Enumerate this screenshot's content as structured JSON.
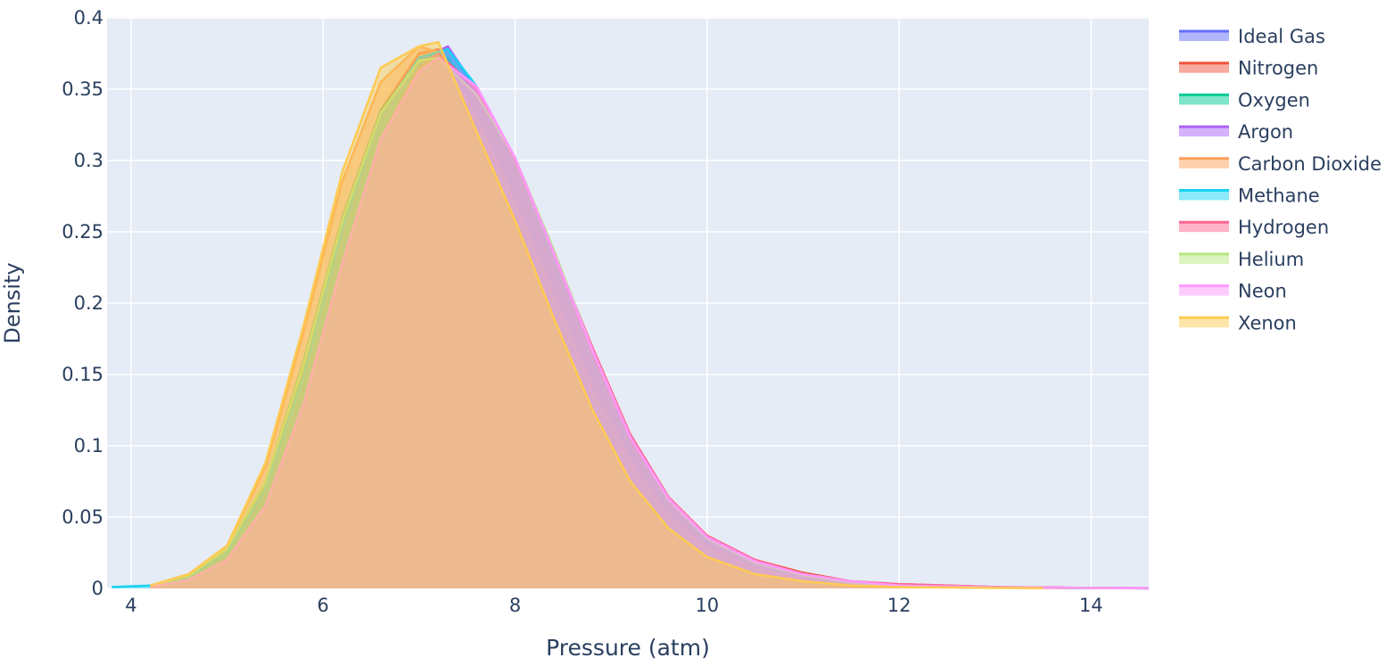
{
  "chart_data": {
    "type": "area",
    "title": "",
    "xlabel": "Pressure (atm)",
    "ylabel": "Density",
    "xlim": [
      3.75,
      14.6
    ],
    "ylim": [
      0,
      0.4
    ],
    "x_ticks": [
      4,
      6,
      8,
      10,
      12,
      14
    ],
    "y_ticks": [
      0,
      0.05,
      0.1,
      0.15,
      0.2,
      0.25,
      0.3,
      0.35,
      0.4
    ],
    "grid": true,
    "legend_position": "top-right",
    "series": [
      {
        "name": "Ideal Gas",
        "color": "#636efa",
        "points": [
          [
            4.2,
            0.002
          ],
          [
            4.6,
            0.008
          ],
          [
            5.0,
            0.025
          ],
          [
            5.4,
            0.07
          ],
          [
            5.8,
            0.15
          ],
          [
            6.2,
            0.25
          ],
          [
            6.6,
            0.33
          ],
          [
            7.0,
            0.372
          ],
          [
            7.3,
            0.378
          ],
          [
            7.6,
            0.35
          ],
          [
            8.0,
            0.3
          ],
          [
            8.4,
            0.23
          ],
          [
            8.8,
            0.16
          ],
          [
            9.2,
            0.1
          ],
          [
            9.6,
            0.06
          ],
          [
            10.0,
            0.035
          ],
          [
            10.5,
            0.018
          ],
          [
            11.0,
            0.009
          ],
          [
            11.5,
            0.004
          ],
          [
            12.0,
            0.002
          ],
          [
            13.0,
            0.0008
          ],
          [
            14.0,
            0.0003
          ],
          [
            14.6,
            0.0001
          ]
        ]
      },
      {
        "name": "Nitrogen",
        "color": "#ef553b",
        "points": [
          [
            4.2,
            0.002
          ],
          [
            4.6,
            0.009
          ],
          [
            5.0,
            0.027
          ],
          [
            5.4,
            0.072
          ],
          [
            5.8,
            0.152
          ],
          [
            6.2,
            0.255
          ],
          [
            6.6,
            0.335
          ],
          [
            7.0,
            0.375
          ],
          [
            7.2,
            0.378
          ],
          [
            7.6,
            0.345
          ],
          [
            8.0,
            0.298
          ],
          [
            8.4,
            0.232
          ],
          [
            8.8,
            0.165
          ],
          [
            9.2,
            0.104
          ],
          [
            9.6,
            0.062
          ],
          [
            10.0,
            0.036
          ],
          [
            10.5,
            0.02
          ],
          [
            11.0,
            0.011
          ],
          [
            11.5,
            0.005
          ],
          [
            12.0,
            0.003
          ],
          [
            13.0,
            0.001
          ],
          [
            14.0,
            0.0003
          ],
          [
            14.6,
            0.0001
          ]
        ]
      },
      {
        "name": "Oxygen",
        "color": "#00cc96",
        "points": [
          [
            4.2,
            0.002
          ],
          [
            4.6,
            0.009
          ],
          [
            5.0,
            0.028
          ],
          [
            5.4,
            0.075
          ],
          [
            5.8,
            0.16
          ],
          [
            6.2,
            0.26
          ],
          [
            6.6,
            0.335
          ],
          [
            7.0,
            0.37
          ],
          [
            7.3,
            0.372
          ],
          [
            7.6,
            0.345
          ],
          [
            8.0,
            0.296
          ],
          [
            8.4,
            0.228
          ],
          [
            8.8,
            0.16
          ],
          [
            9.2,
            0.1
          ],
          [
            9.6,
            0.058
          ],
          [
            10.0,
            0.033
          ],
          [
            10.5,
            0.017
          ],
          [
            11.0,
            0.008
          ],
          [
            11.5,
            0.004
          ],
          [
            12.0,
            0.002
          ],
          [
            13.0,
            0.0007
          ],
          [
            14.0,
            0.0002
          ],
          [
            14.6,
            0.0001
          ]
        ]
      },
      {
        "name": "Argon",
        "color": "#ab63fa",
        "points": [
          [
            4.2,
            0.002
          ],
          [
            4.6,
            0.008
          ],
          [
            5.0,
            0.024
          ],
          [
            5.4,
            0.068
          ],
          [
            5.8,
            0.148
          ],
          [
            6.2,
            0.248
          ],
          [
            6.6,
            0.328
          ],
          [
            7.0,
            0.37
          ],
          [
            7.3,
            0.38
          ],
          [
            7.6,
            0.35
          ],
          [
            8.0,
            0.298
          ],
          [
            8.4,
            0.232
          ],
          [
            8.8,
            0.163
          ],
          [
            9.2,
            0.102
          ],
          [
            9.6,
            0.06
          ],
          [
            10.0,
            0.034
          ],
          [
            10.5,
            0.018
          ],
          [
            11.0,
            0.009
          ],
          [
            11.5,
            0.004
          ],
          [
            12.0,
            0.002
          ],
          [
            13.0,
            0.0008
          ],
          [
            14.0,
            0.0004
          ],
          [
            14.6,
            0.0002
          ]
        ]
      },
      {
        "name": "Carbon Dioxide",
        "color": "#ffa15a",
        "points": [
          [
            4.2,
            0.002
          ],
          [
            4.6,
            0.01
          ],
          [
            5.0,
            0.03
          ],
          [
            5.4,
            0.085
          ],
          [
            5.8,
            0.18
          ],
          [
            6.2,
            0.285
          ],
          [
            6.6,
            0.355
          ],
          [
            7.0,
            0.38
          ],
          [
            7.2,
            0.376
          ],
          [
            7.6,
            0.33
          ],
          [
            8.0,
            0.27
          ],
          [
            8.4,
            0.205
          ],
          [
            8.8,
            0.14
          ],
          [
            9.2,
            0.088
          ],
          [
            9.6,
            0.05
          ],
          [
            10.0,
            0.028
          ],
          [
            10.5,
            0.014
          ],
          [
            11.0,
            0.007
          ],
          [
            11.5,
            0.003
          ],
          [
            12.0,
            0.0015
          ],
          [
            13.0,
            0.0005
          ],
          [
            14.0,
            0.0002
          ],
          [
            14.6,
            0.0001
          ]
        ]
      },
      {
        "name": "Methane",
        "color": "#19d3f3",
        "points": [
          [
            3.8,
            0.001
          ],
          [
            4.2,
            0.002
          ],
          [
            4.6,
            0.008
          ],
          [
            5.0,
            0.025
          ],
          [
            5.4,
            0.07
          ],
          [
            5.8,
            0.15
          ],
          [
            6.2,
            0.252
          ],
          [
            6.6,
            0.332
          ],
          [
            7.0,
            0.372
          ],
          [
            7.3,
            0.378
          ],
          [
            7.6,
            0.352
          ],
          [
            8.0,
            0.3
          ],
          [
            8.4,
            0.23
          ],
          [
            8.8,
            0.16
          ],
          [
            9.2,
            0.1
          ],
          [
            9.6,
            0.058
          ],
          [
            10.0,
            0.033
          ],
          [
            10.5,
            0.017
          ],
          [
            11.0,
            0.008
          ],
          [
            11.5,
            0.004
          ],
          [
            12.0,
            0.002
          ],
          [
            13.0,
            0.0007
          ],
          [
            14.0,
            0.0003
          ],
          [
            14.6,
            0.0001
          ]
        ]
      },
      {
        "name": "Hydrogen",
        "color": "#ff6692",
        "points": [
          [
            4.2,
            0.001
          ],
          [
            4.6,
            0.006
          ],
          [
            5.0,
            0.02
          ],
          [
            5.4,
            0.058
          ],
          [
            5.8,
            0.13
          ],
          [
            6.2,
            0.228
          ],
          [
            6.6,
            0.315
          ],
          [
            7.0,
            0.365
          ],
          [
            7.2,
            0.375
          ],
          [
            7.6,
            0.35
          ],
          [
            8.0,
            0.3
          ],
          [
            8.4,
            0.236
          ],
          [
            8.8,
            0.17
          ],
          [
            9.2,
            0.108
          ],
          [
            9.6,
            0.064
          ],
          [
            10.0,
            0.037
          ],
          [
            10.5,
            0.02
          ],
          [
            11.0,
            0.01
          ],
          [
            11.5,
            0.005
          ],
          [
            12.0,
            0.003
          ],
          [
            13.0,
            0.001
          ],
          [
            14.0,
            0.0004
          ],
          [
            14.6,
            0.0002
          ]
        ]
      },
      {
        "name": "Helium",
        "color": "#b6e880",
        "points": [
          [
            4.2,
            0.002
          ],
          [
            4.6,
            0.009
          ],
          [
            5.0,
            0.028
          ],
          [
            5.4,
            0.075
          ],
          [
            5.8,
            0.158
          ],
          [
            6.2,
            0.258
          ],
          [
            6.6,
            0.333
          ],
          [
            7.0,
            0.37
          ],
          [
            7.2,
            0.372
          ],
          [
            7.6,
            0.346
          ],
          [
            8.0,
            0.302
          ],
          [
            8.4,
            0.238
          ],
          [
            8.8,
            0.168
          ],
          [
            9.2,
            0.106
          ],
          [
            9.6,
            0.062
          ],
          [
            10.0,
            0.035
          ],
          [
            10.5,
            0.018
          ],
          [
            11.0,
            0.009
          ],
          [
            11.5,
            0.004
          ],
          [
            12.0,
            0.002
          ],
          [
            13.0,
            0.0007
          ],
          [
            14.0,
            0.0003
          ],
          [
            14.6,
            0.0001
          ]
        ]
      },
      {
        "name": "Neon",
        "color": "#ff97ff",
        "points": [
          [
            4.2,
            0.001
          ],
          [
            4.6,
            0.006
          ],
          [
            5.0,
            0.02
          ],
          [
            5.4,
            0.058
          ],
          [
            5.8,
            0.13
          ],
          [
            6.2,
            0.228
          ],
          [
            6.6,
            0.315
          ],
          [
            7.0,
            0.362
          ],
          [
            7.2,
            0.372
          ],
          [
            7.6,
            0.352
          ],
          [
            8.0,
            0.302
          ],
          [
            8.4,
            0.236
          ],
          [
            8.8,
            0.168
          ],
          [
            9.2,
            0.106
          ],
          [
            9.6,
            0.063
          ],
          [
            10.0,
            0.036
          ],
          [
            10.5,
            0.019
          ],
          [
            11.0,
            0.01
          ],
          [
            11.5,
            0.005
          ],
          [
            12.0,
            0.002
          ],
          [
            13.0,
            0.0008
          ],
          [
            14.0,
            0.0003
          ],
          [
            14.6,
            0.0001
          ]
        ]
      },
      {
        "name": "Xenon",
        "color": "#fecb52",
        "points": [
          [
            4.2,
            0.002
          ],
          [
            4.6,
            0.01
          ],
          [
            5.0,
            0.03
          ],
          [
            5.4,
            0.088
          ],
          [
            5.8,
            0.185
          ],
          [
            6.2,
            0.292
          ],
          [
            6.6,
            0.365
          ],
          [
            7.0,
            0.38
          ],
          [
            7.2,
            0.383
          ],
          [
            7.6,
            0.32
          ],
          [
            8.0,
            0.258
          ],
          [
            8.4,
            0.19
          ],
          [
            8.8,
            0.126
          ],
          [
            9.2,
            0.075
          ],
          [
            9.6,
            0.042
          ],
          [
            10.0,
            0.022
          ],
          [
            10.5,
            0.01
          ],
          [
            11.0,
            0.005
          ],
          [
            11.5,
            0.002
          ],
          [
            12.0,
            0.001
          ],
          [
            13.0,
            0.0004
          ],
          [
            13.5,
            0.0002
          ]
        ]
      }
    ]
  }
}
